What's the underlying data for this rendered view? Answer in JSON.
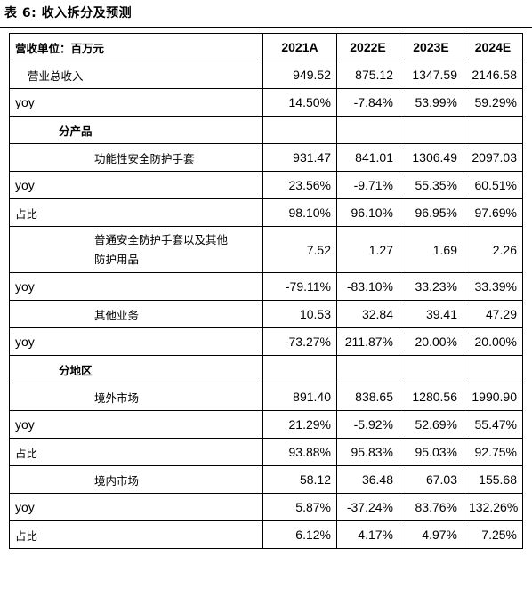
{
  "caption": "表 6:  收入拆分及预测",
  "header": {
    "label": "营收单位：百万元",
    "years": [
      "2021A",
      "2022E",
      "2023E",
      "2024E"
    ]
  },
  "rows": [
    {
      "label": "营业总收入",
      "indent": 1,
      "bold": false,
      "values": [
        "949.52",
        "875.12",
        "1347.59",
        "2146.58"
      ]
    },
    {
      "label": "yoy",
      "indent": 0,
      "bold": false,
      "values": [
        "14.50%",
        "-7.84%",
        "53.99%",
        "59.29%"
      ]
    },
    {
      "label": "分产品",
      "indent": 2,
      "bold": true,
      "values": [
        "",
        "",
        "",
        ""
      ]
    },
    {
      "label": "功能性安全防护手套",
      "indent": 3,
      "bold": false,
      "values": [
        "931.47",
        "841.01",
        "1306.49",
        "2097.03"
      ]
    },
    {
      "label": "yoy",
      "indent": 0,
      "bold": false,
      "values": [
        "23.56%",
        "-9.71%",
        "55.35%",
        "60.51%"
      ]
    },
    {
      "label": "占比",
      "indent": 0,
      "bold": false,
      "values": [
        "98.10%",
        "96.10%",
        "96.95%",
        "97.69%"
      ]
    },
    {
      "label": "普通安全防护手套以及其他防护用品",
      "indent": 3,
      "bold": false,
      "tall": true,
      "label_lines": [
        "普通安全防护手套以及其他",
        "防护用品"
      ],
      "values": [
        "7.52",
        "1.27",
        "1.69",
        "2.26"
      ]
    },
    {
      "label": "yoy",
      "indent": 0,
      "bold": false,
      "values": [
        "-79.11%",
        "-83.10%",
        "33.23%",
        "33.39%"
      ]
    },
    {
      "label": "其他业务",
      "indent": 3,
      "bold": false,
      "values": [
        "10.53",
        "32.84",
        "39.41",
        "47.29"
      ]
    },
    {
      "label": "yoy",
      "indent": 0,
      "bold": false,
      "values": [
        "-73.27%",
        "211.87%",
        "20.00%",
        "20.00%"
      ]
    },
    {
      "label": "分地区",
      "indent": 2,
      "bold": true,
      "values": [
        "",
        "",
        "",
        ""
      ]
    },
    {
      "label": "境外市场",
      "indent": 3,
      "bold": false,
      "values": [
        "891.40",
        "838.65",
        "1280.56",
        "1990.90"
      ]
    },
    {
      "label": "yoy",
      "indent": 0,
      "bold": false,
      "values": [
        "21.29%",
        "-5.92%",
        "52.69%",
        "55.47%"
      ]
    },
    {
      "label": "占比",
      "indent": 0,
      "bold": false,
      "values": [
        "93.88%",
        "95.83%",
        "95.03%",
        "92.75%"
      ]
    },
    {
      "label": "境内市场",
      "indent": 3,
      "bold": false,
      "values": [
        "58.12",
        "36.48",
        "67.03",
        "155.68"
      ]
    },
    {
      "label": "yoy",
      "indent": 0,
      "bold": false,
      "values": [
        "5.87%",
        "-37.24%",
        "83.76%",
        "132.26%"
      ]
    },
    {
      "label": "占比",
      "indent": 0,
      "bold": false,
      "values": [
        "6.12%",
        "4.17%",
        "4.97%",
        "7.25%"
      ]
    }
  ]
}
